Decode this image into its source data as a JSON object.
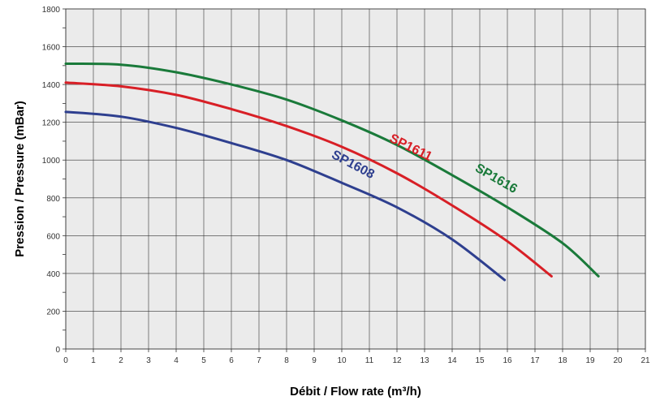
{
  "chart_data": {
    "type": "line",
    "xlabel": "Débit / Flow rate (m³/h)",
    "ylabel": "Pression / Pressure (mBar)",
    "xlim": [
      0,
      21
    ],
    "ylim": [
      0,
      1800
    ],
    "x_ticks": [
      "0",
      "1",
      "2",
      "3",
      "4",
      "5",
      "6",
      "7",
      "8",
      "9",
      "10",
      "11",
      "12",
      "13",
      "14",
      "15",
      "16",
      "17",
      "18",
      "19",
      "20",
      "21"
    ],
    "y_ticks": [
      "0",
      "200",
      "400",
      "600",
      "800",
      "1000",
      "1200",
      "1400",
      "1600",
      "1800"
    ],
    "grid": true,
    "series": [
      {
        "name": "SP1608",
        "color": "#2e3f8f",
        "points": [
          [
            0,
            1255
          ],
          [
            2,
            1230
          ],
          [
            4,
            1170
          ],
          [
            6,
            1090
          ],
          [
            8,
            1000
          ],
          [
            10,
            880
          ],
          [
            12,
            750
          ],
          [
            14,
            580
          ],
          [
            15.9,
            365
          ]
        ]
      },
      {
        "name": "SP1611",
        "color": "#d81f26",
        "points": [
          [
            0,
            1410
          ],
          [
            2,
            1390
          ],
          [
            4,
            1345
          ],
          [
            6,
            1270
          ],
          [
            8,
            1180
          ],
          [
            10,
            1070
          ],
          [
            12,
            930
          ],
          [
            14,
            760
          ],
          [
            16,
            570
          ],
          [
            17.6,
            385
          ]
        ]
      },
      {
        "name": "SP1616",
        "color": "#1a7a3a",
        "points": [
          [
            0,
            1510
          ],
          [
            2,
            1505
          ],
          [
            4,
            1465
          ],
          [
            6,
            1400
          ],
          [
            8,
            1320
          ],
          [
            10,
            1210
          ],
          [
            12,
            1080
          ],
          [
            14,
            920
          ],
          [
            16,
            750
          ],
          [
            18,
            560
          ],
          [
            19.3,
            385
          ]
        ]
      }
    ]
  }
}
